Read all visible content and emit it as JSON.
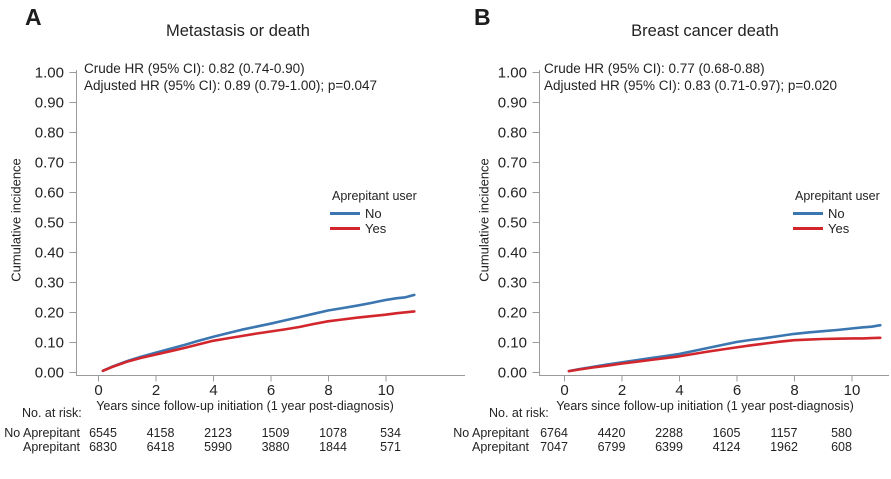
{
  "chart_data": [
    {
      "type": "line",
      "panel_label": "A",
      "title": "Metastasis or death",
      "annotations": [
        "Crude HR (95% CI): 0.82 (0.74-0.90)",
        "Adjusted HR (95% CI): 0.89 (0.79-1.00); p=0.047"
      ],
      "xlabel": "Years since follow-up initiation (1 year post-diagnosis)",
      "ylabel": "Cumulative incidence",
      "xlim": [
        0,
        11.5
      ],
      "ylim": [
        0,
        1.0
      ],
      "x_ticks": [
        0,
        2,
        4,
        6,
        8,
        10
      ],
      "y_ticks": [
        "0.00",
        "0.10",
        "0.20",
        "0.30",
        "0.40",
        "0.50",
        "0.60",
        "0.70",
        "0.80",
        "0.90",
        "1.00"
      ],
      "grid": "off",
      "legend_title": "Aprepitant user",
      "legend_position": "right-middle",
      "series": [
        {
          "name": "No",
          "color": "#3b76b0",
          "x": [
            0.17,
            0.5,
            1,
            1.5,
            2,
            2.5,
            3,
            3.5,
            4,
            4.5,
            5,
            5.5,
            6,
            6.5,
            7,
            7.5,
            8,
            8.5,
            9,
            9.5,
            10,
            10.4,
            10.7,
            11.0
          ],
          "y": [
            0.004,
            0.018,
            0.036,
            0.051,
            0.064,
            0.077,
            0.09,
            0.104,
            0.117,
            0.129,
            0.141,
            0.151,
            0.161,
            0.172,
            0.183,
            0.194,
            0.205,
            0.213,
            0.221,
            0.23,
            0.24,
            0.246,
            0.249,
            0.257
          ]
        },
        {
          "name": "Yes",
          "color": "#d2262c",
          "x": [
            0.17,
            0.5,
            1,
            1.5,
            2,
            2.5,
            3,
            3.5,
            4,
            4.5,
            5,
            5.5,
            6,
            6.5,
            7,
            7.5,
            8,
            8.5,
            9,
            9.5,
            10,
            10.4,
            10.7,
            11.0
          ],
          "y": [
            0.004,
            0.017,
            0.034,
            0.047,
            0.058,
            0.069,
            0.08,
            0.092,
            0.104,
            0.112,
            0.12,
            0.128,
            0.135,
            0.142,
            0.15,
            0.16,
            0.169,
            0.175,
            0.181,
            0.186,
            0.191,
            0.196,
            0.199,
            0.202
          ]
        }
      ],
      "risk_table": {
        "caption": "No. at risk:",
        "years": [
          0,
          2,
          4,
          6,
          8,
          10
        ],
        "rows": [
          {
            "label": "No Aprepitant",
            "counts": [
              6545,
              4158,
              2123,
              1509,
              1078,
              534
            ]
          },
          {
            "label": "Aprepitant",
            "counts": [
              6830,
              6418,
              5990,
              3880,
              1844,
              571
            ]
          }
        ]
      }
    },
    {
      "type": "line",
      "panel_label": "B",
      "title": "Breast cancer death",
      "annotations": [
        "Crude HR (95% CI): 0.77 (0.68-0.88)",
        "Adjusted HR (95% CI): 0.83 (0.71-0.97); p=0.020"
      ],
      "xlabel": "Years since follow-up initiation (1 year post-diagnosis)",
      "ylabel": "Cumulative incidence",
      "xlim": [
        0,
        11.5
      ],
      "ylim": [
        0,
        1.0
      ],
      "x_ticks": [
        0,
        2,
        4,
        6,
        8,
        10
      ],
      "y_ticks": [
        "0.00",
        "0.10",
        "0.20",
        "0.30",
        "0.40",
        "0.50",
        "0.60",
        "0.70",
        "0.80",
        "0.90",
        "1.00"
      ],
      "grid": "off",
      "legend_title": "Aprepitant user",
      "legend_position": "right-middle",
      "series": [
        {
          "name": "No",
          "color": "#3b76b0",
          "x": [
            0.17,
            0.5,
            1,
            1.5,
            2,
            2.5,
            3,
            3.5,
            4,
            4.5,
            5,
            5.5,
            6,
            6.5,
            7,
            7.5,
            8,
            8.5,
            9,
            9.5,
            10,
            10.4,
            10.7,
            11.0
          ],
          "y": [
            0.003,
            0.009,
            0.017,
            0.025,
            0.032,
            0.039,
            0.046,
            0.053,
            0.06,
            0.07,
            0.08,
            0.09,
            0.1,
            0.107,
            0.113,
            0.12,
            0.127,
            0.132,
            0.136,
            0.14,
            0.145,
            0.149,
            0.151,
            0.156
          ]
        },
        {
          "name": "Yes",
          "color": "#d2262c",
          "x": [
            0.17,
            0.5,
            1,
            1.5,
            2,
            2.5,
            3,
            3.5,
            4,
            4.5,
            5,
            5.5,
            6,
            6.5,
            7,
            7.5,
            8,
            8.5,
            9,
            9.5,
            10,
            10.4,
            10.7,
            11.0
          ],
          "y": [
            0.003,
            0.008,
            0.015,
            0.021,
            0.028,
            0.034,
            0.04,
            0.046,
            0.052,
            0.06,
            0.068,
            0.075,
            0.082,
            0.089,
            0.095,
            0.101,
            0.106,
            0.108,
            0.11,
            0.111,
            0.112,
            0.112,
            0.113,
            0.114
          ]
        }
      ],
      "risk_table": {
        "caption": "No. at risk:",
        "years": [
          0,
          2,
          4,
          6,
          8,
          10
        ],
        "rows": [
          {
            "label": "No Aprepitant",
            "counts": [
              6764,
              4420,
              2288,
              1605,
              1157,
              580
            ]
          },
          {
            "label": "Aprepitant",
            "counts": [
              7047,
              6799,
              6399,
              4124,
              1962,
              608
            ]
          }
        ]
      }
    }
  ]
}
